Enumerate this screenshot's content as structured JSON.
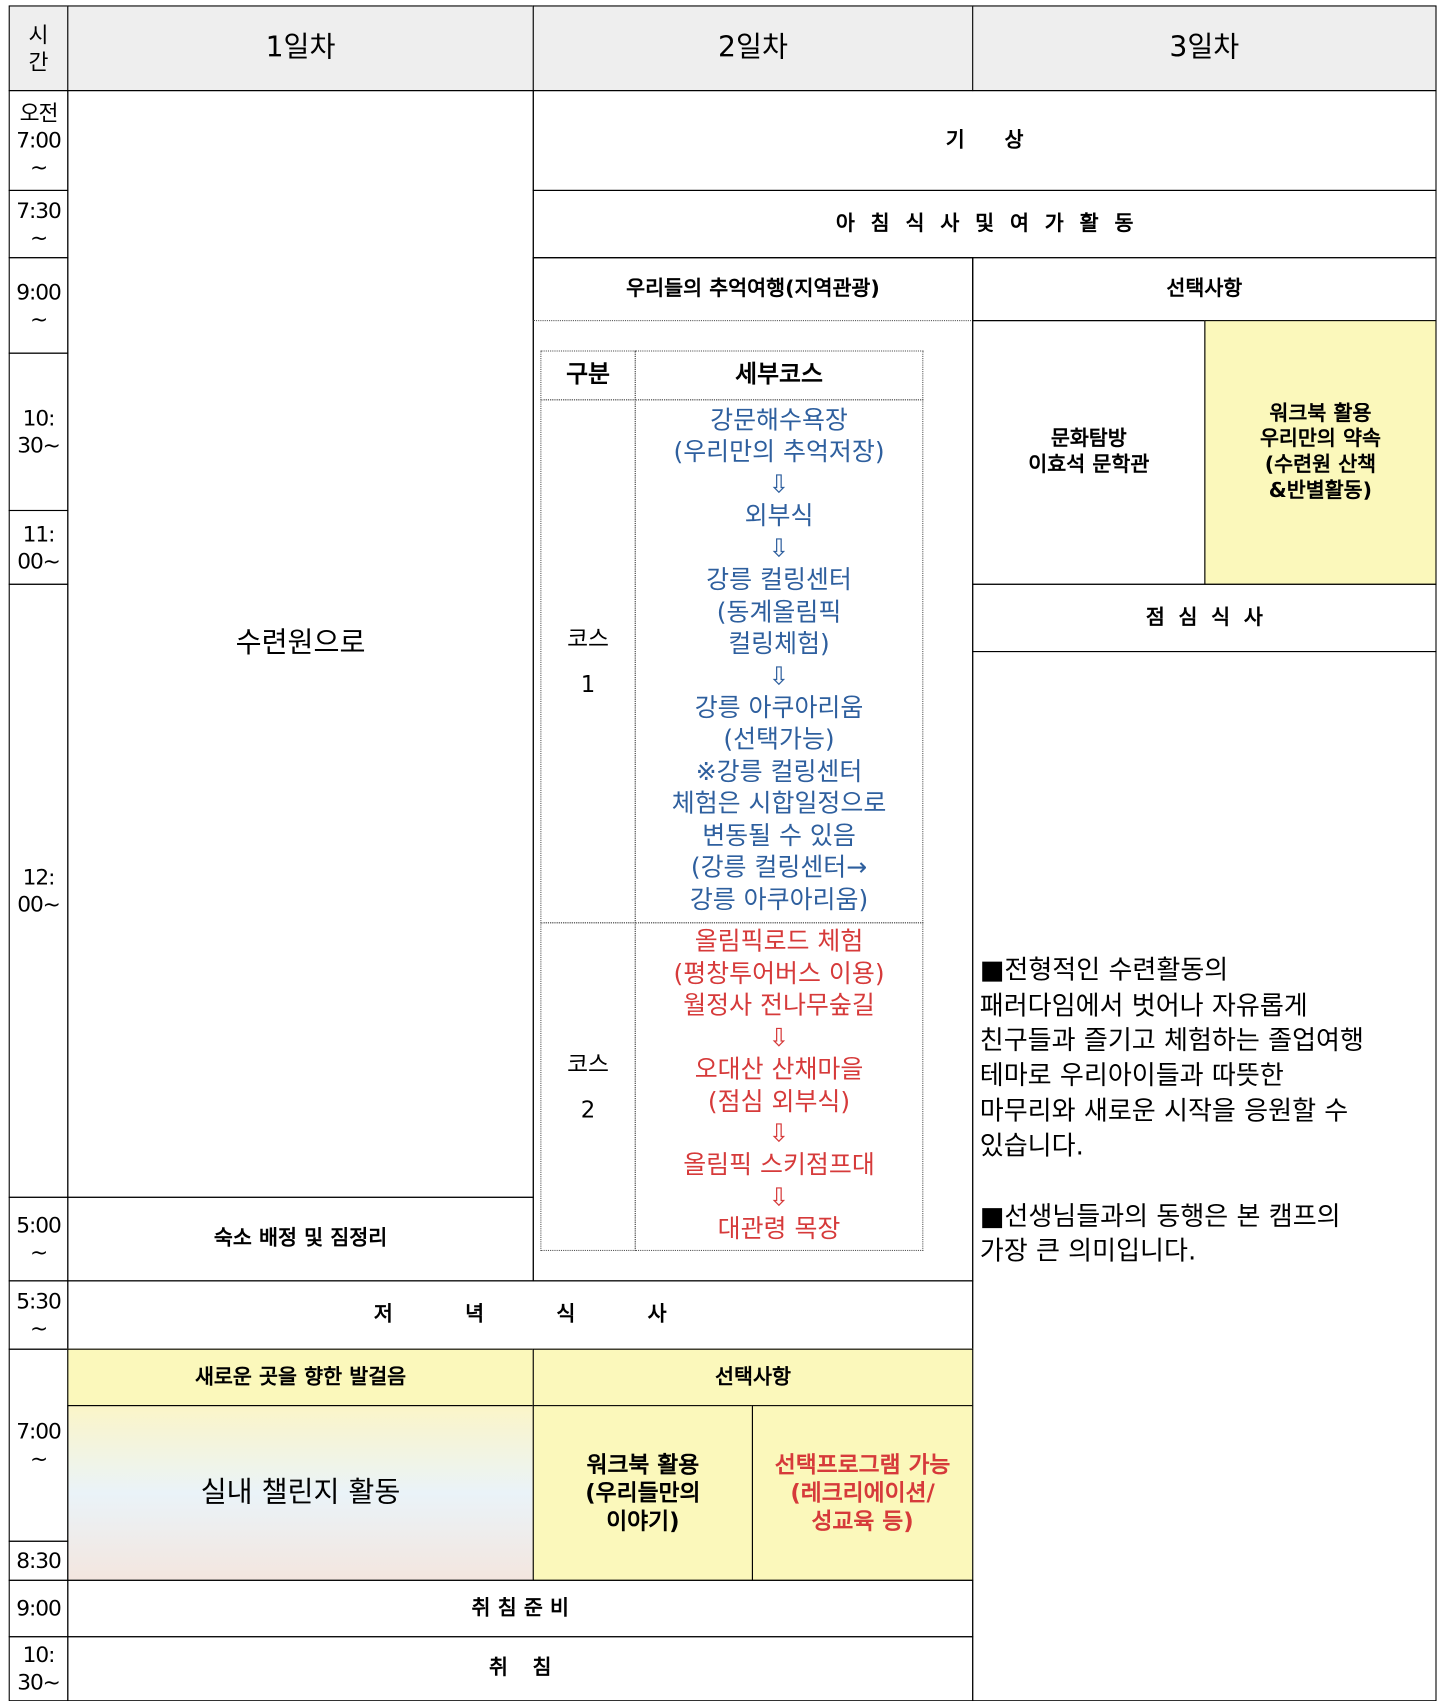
{
  "header": {
    "time": "시\n간",
    "days": [
      "1일차",
      "2일차",
      "3일차"
    ]
  },
  "times": [
    "오전\n7:00\n~",
    "7:30\n~",
    "9:00\n~",
    "10:\n30~",
    "11:\n00~",
    "12:\n00~",
    "5:00\n~",
    "5:30\n~",
    "7:00\n~",
    "8:30",
    "9:00",
    "10:\n30~"
  ],
  "day1": {
    "main": "수련원으로",
    "lodging": "숙소 배정 및 짐정리",
    "evening_title": "새로운 곳을 향한 발걸음",
    "evening_activity": "실내 챌린지 활동"
  },
  "shared": {
    "wake": "기 상",
    "breakfast": "아 침 식 사   및   여 가 활 동",
    "dinner": "저 녁 식 사",
    "prep_sleep": "취 침 준 비",
    "sleep": "취 침"
  },
  "day2": {
    "tour_title": "우리들의 추억여행(지역관광)",
    "course_table": {
      "headers": [
        "구분",
        "세부코스"
      ],
      "rows": [
        [
          "코스\n1",
          "강문해수욕장\n(우리만의 추억저장)\n⇩\n외부식\n⇩\n강릉 컬링센터\n(동계올림픽\n컬링체험)\n⇩\n강릉 아쿠아리움\n(선택가능)\n※강릉 컬링센터\n체험은 시합일정으로\n변동될 수 있음\n(강릉 컬링센터→\n강릉 아쿠아리움)"
        ],
        [
          "코스\n2",
          "올림픽로드 체험\n(평창투어버스 이용)\n월정사 전나무숲길\n⇩\n오대산 산채마을\n(점심 외부식)\n⇩\n올림픽 스키점프대\n⇩\n대관령 목장"
        ]
      ]
    },
    "option_title": "선택사항",
    "option_workbook": "워크북 활용\n(우리들만의\n이야기)",
    "option_program": "선택프로그램 가능\n(레크리에이션/\n성교육 등)"
  },
  "day3": {
    "option_title": "선택사항",
    "culture": "문화탐방\n이효석 문학관",
    "workbook": "워크북 활용\n우리만의 약속\n(수련원 산책\n&반별활동)",
    "lunch": "점   심   식   사",
    "note": "■전형적인 수련활동의\n패러다임에서 벗어나 자유롭게\n친구들과 즐기고 체험하는 졸업여행\n테마로 우리아이들과 따뜻한\n마무리와 새로운 시작을 응원할 수\n있습니다.\n\n■선생님들과의 동행은 본 캠프의\n가장 큰 의미입니다."
  }
}
